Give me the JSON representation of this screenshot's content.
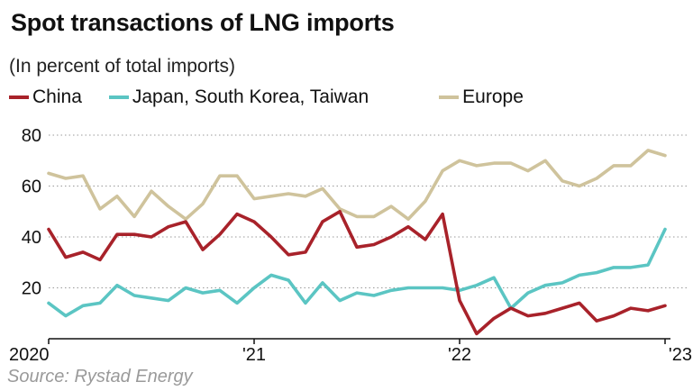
{
  "title": "Spot transactions of LNG imports",
  "subtitle": "(In percent of total imports)",
  "source": "Source: Rystad Energy",
  "chart_data": {
    "type": "line",
    "title": "Spot transactions of LNG imports",
    "subtitle": "(In percent of total imports)",
    "ylim": [
      0,
      80
    ],
    "yticks": [
      20,
      40,
      60,
      80
    ],
    "xlim": [
      2020.0,
      2023.0
    ],
    "xticks": [
      {
        "value": 2020.0,
        "label": "2020"
      },
      {
        "value": 2021.0,
        "label": "'21"
      },
      {
        "value": 2022.0,
        "label": "'22"
      },
      {
        "value": 2023.0,
        "label": "'23"
      }
    ],
    "grid": true,
    "legend_position": "top",
    "series": [
      {
        "name": "China",
        "color": "#a8222a",
        "x": [
          2020.0,
          2020.083,
          2020.167,
          2020.25,
          2020.333,
          2020.417,
          2020.5,
          2020.583,
          2020.667,
          2020.75,
          2020.833,
          2020.917,
          2021.0,
          2021.083,
          2021.167,
          2021.25,
          2021.333,
          2021.417,
          2021.5,
          2021.583,
          2021.667,
          2021.75,
          2021.833,
          2021.917,
          2022.0,
          2022.083,
          2022.167,
          2022.25,
          2022.333,
          2022.417,
          2022.5,
          2022.583,
          2022.667,
          2022.75,
          2022.833,
          2022.917,
          2023.0
        ],
        "values": [
          43,
          32,
          34,
          31,
          41,
          41,
          40,
          44,
          46,
          35,
          41,
          49,
          46,
          40,
          33,
          34,
          46,
          50,
          36,
          37,
          40,
          44,
          39,
          49,
          15,
          2,
          8,
          12,
          9,
          10,
          12,
          14,
          7,
          9,
          12,
          11,
          13
        ]
      },
      {
        "name": "Japan, South Korea, Taiwan",
        "color": "#5bc5c3",
        "x": [
          2020.0,
          2020.083,
          2020.167,
          2020.25,
          2020.333,
          2020.417,
          2020.5,
          2020.583,
          2020.667,
          2020.75,
          2020.833,
          2020.917,
          2021.0,
          2021.083,
          2021.167,
          2021.25,
          2021.333,
          2021.417,
          2021.5,
          2021.583,
          2021.667,
          2021.75,
          2021.833,
          2021.917,
          2022.0,
          2022.083,
          2022.167,
          2022.25,
          2022.333,
          2022.417,
          2022.5,
          2022.583,
          2022.667,
          2022.75,
          2022.833,
          2022.917,
          2023.0
        ],
        "values": [
          14,
          9,
          13,
          14,
          21,
          17,
          16,
          15,
          20,
          18,
          19,
          14,
          20,
          25,
          23,
          14,
          22,
          15,
          18,
          17,
          19,
          20,
          20,
          20,
          19,
          21,
          24,
          12,
          18,
          21,
          22,
          25,
          26,
          28,
          28,
          29,
          43
        ]
      },
      {
        "name": "Europe",
        "color": "#cfc39c",
        "x": [
          2020.0,
          2020.083,
          2020.167,
          2020.25,
          2020.333,
          2020.417,
          2020.5,
          2020.583,
          2020.667,
          2020.75,
          2020.833,
          2020.917,
          2021.0,
          2021.083,
          2021.167,
          2021.25,
          2021.333,
          2021.417,
          2021.5,
          2021.583,
          2021.667,
          2021.75,
          2021.833,
          2021.917,
          2022.0,
          2022.083,
          2022.167,
          2022.25,
          2022.333,
          2022.417,
          2022.5,
          2022.583,
          2022.667,
          2022.75,
          2022.833,
          2022.917,
          2023.0
        ],
        "values": [
          65,
          63,
          64,
          51,
          56,
          48,
          58,
          52,
          47,
          53,
          64,
          64,
          55,
          56,
          57,
          56,
          59,
          51,
          48,
          48,
          52,
          47,
          54,
          66,
          70,
          68,
          69,
          69,
          66,
          70,
          62,
          60,
          63,
          68,
          68,
          74,
          72
        ]
      }
    ]
  }
}
